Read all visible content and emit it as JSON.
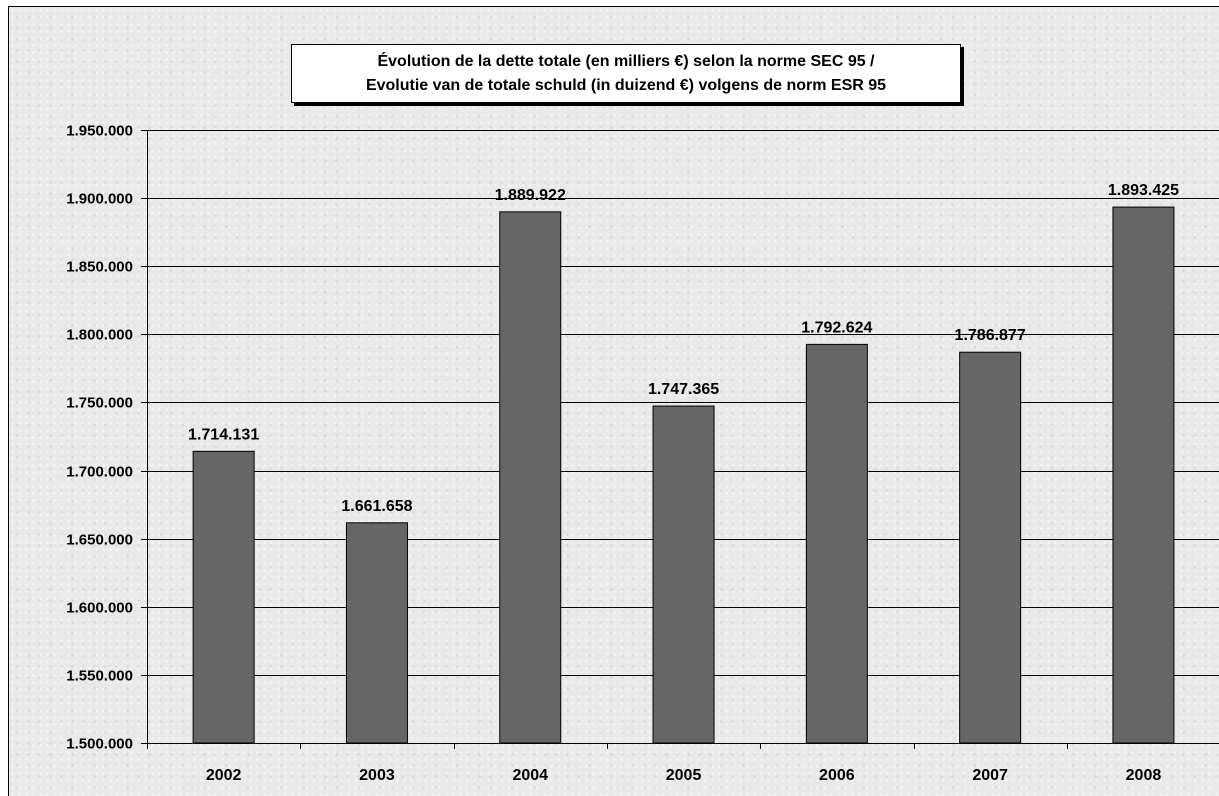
{
  "chart_data": {
    "type": "bar",
    "title_line1": "Évolution de la dette totale (en milliers €) selon la norme SEC 95 /",
    "title_line2": "Evolutie van de totale schuld (in duizend €) volgens de norm ESR 95",
    "categories": [
      "2002",
      "2003",
      "2004",
      "2005",
      "2006",
      "2007",
      "2008"
    ],
    "values": [
      1714131,
      1661658,
      1889922,
      1747365,
      1792624,
      1786877,
      1893425
    ],
    "value_labels": [
      "1.714.131",
      "1.661.658",
      "1.889.922",
      "1.747.365",
      "1.792.624",
      "1.786.877",
      "1.893.425"
    ],
    "y_ticks": [
      1500000,
      1550000,
      1600000,
      1650000,
      1700000,
      1750000,
      1800000,
      1850000,
      1900000,
      1950000
    ],
    "y_tick_labels": [
      "1.500.000",
      "1.550.000",
      "1.600.000",
      "1.650.000",
      "1.700.000",
      "1.750.000",
      "1.800.000",
      "1.850.000",
      "1.900.000",
      "1.950.000"
    ],
    "ylim": [
      1500000,
      1950000
    ],
    "xlabel": "",
    "ylabel": "",
    "grid": true,
    "colors": {
      "bar": "#666666",
      "bar_border": "#000000",
      "gridline": "#000000",
      "background": "#e9e9e9"
    }
  }
}
